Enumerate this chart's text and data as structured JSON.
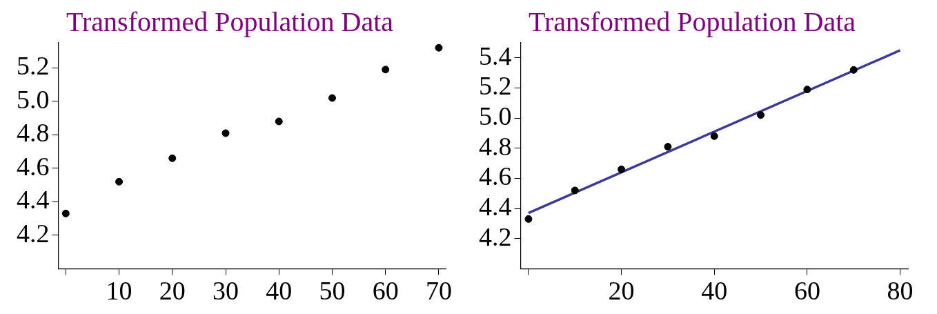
{
  "chart_data": [
    {
      "type": "scatter",
      "title": "Transformed Population Data",
      "x": [
        0,
        10,
        20,
        30,
        40,
        50,
        60,
        70
      ],
      "values": [
        4.33,
        4.52,
        4.66,
        4.81,
        4.88,
        5.02,
        5.19,
        5.32
      ],
      "color": "#000000",
      "marker": "circle",
      "xlim": [
        -1.4,
        71.3
      ],
      "ylim": [
        4.0,
        5.35
      ],
      "xticks": [
        {
          "value": 0,
          "label": null
        },
        10,
        20,
        30,
        40,
        50,
        60,
        70
      ],
      "yticks": [
        4.2,
        4.4,
        4.6,
        4.8,
        {
          "value": 5.0,
          "label": "5.0"
        },
        5.2
      ]
    },
    {
      "type": "scatter",
      "title": "Transformed Population Data",
      "line_style": "solid",
      "xlim": [
        -1.7,
        81.7
      ],
      "ylim": [
        4.0,
        5.5
      ],
      "xticks": [
        {
          "value": 0,
          "label": null
        },
        20,
        40,
        60,
        80
      ],
      "yticks": [
        4.2,
        4.4,
        4.6,
        4.8,
        {
          "value": 5.0,
          "label": "5.0"
        },
        5.2,
        5.4
      ],
      "series": [
        {
          "color": "#000000",
          "marker": "circle",
          "x": [
            0,
            10,
            20,
            30,
            40,
            50,
            60,
            70
          ],
          "values": [
            4.33,
            4.52,
            4.66,
            4.81,
            4.88,
            5.02,
            5.19,
            5.32
          ]
        },
        {
          "type": "line",
          "marker": "none",
          "color": "#3a3a9a",
          "x": [
            0,
            80
          ],
          "values": [
            4.37,
            5.45
          ]
        }
      ]
    }
  ]
}
